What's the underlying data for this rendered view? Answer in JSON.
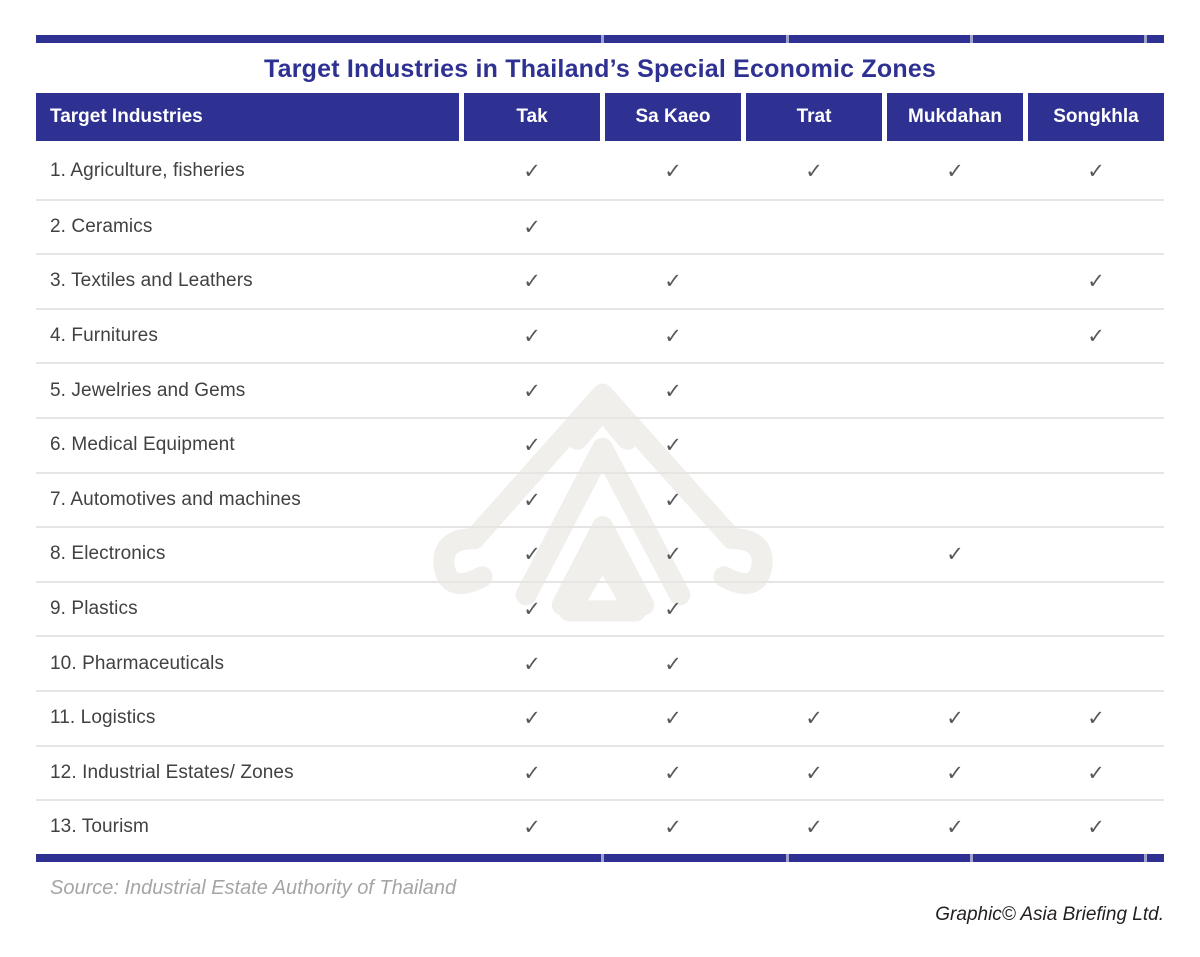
{
  "colors": {
    "accent_navy": "#2e3192",
    "header_text": "#ffffff",
    "row_text": "#414042",
    "check_color": "#58595b",
    "divider": "#e7e5e4",
    "source_text": "#a7a5a3",
    "credit_text": "#231f20",
    "watermark": "#f1efec"
  },
  "chart_data": {
    "type": "table",
    "title": "Target Industries in Thailand’s Special Economic Zones",
    "columns": [
      "Target Industries",
      "Tak",
      "Sa Kaeo",
      "Trat",
      "Mukdahan",
      "Songkhla"
    ],
    "check_glyph": "✓",
    "rows": [
      {
        "label": "1. Agriculture, fisheries",
        "checks": [
          true,
          true,
          true,
          true,
          true
        ]
      },
      {
        "label": "2. Ceramics",
        "checks": [
          true,
          false,
          false,
          false,
          false
        ]
      },
      {
        "label": "3. Textiles and Leathers",
        "checks": [
          true,
          true,
          false,
          false,
          true
        ]
      },
      {
        "label": "4. Furnitures",
        "checks": [
          true,
          true,
          false,
          false,
          true
        ]
      },
      {
        "label": "5. Jewelries and Gems",
        "checks": [
          true,
          true,
          false,
          false,
          false
        ]
      },
      {
        "label": "6. Medical Equipment",
        "checks": [
          true,
          true,
          false,
          false,
          false
        ]
      },
      {
        "label": "7. Automotives and machines",
        "checks": [
          true,
          true,
          false,
          false,
          false
        ]
      },
      {
        "label": "8. Electronics",
        "checks": [
          true,
          true,
          false,
          true,
          false
        ]
      },
      {
        "label": "9. Plastics",
        "checks": [
          true,
          true,
          false,
          false,
          false
        ]
      },
      {
        "label": "10. Pharmaceuticals",
        "checks": [
          true,
          true,
          false,
          false,
          false
        ]
      },
      {
        "label": "11. Logistics",
        "checks": [
          true,
          true,
          true,
          true,
          true
        ]
      },
      {
        "label": "12. Industrial Estates/ Zones",
        "checks": [
          true,
          true,
          true,
          true,
          true
        ]
      },
      {
        "label": "13. Tourism",
        "checks": [
          true,
          true,
          true,
          true,
          true
        ]
      }
    ],
    "source": "Source: Industrial Estate Authority of Thailand",
    "credit": "Graphic© Asia Briefing Ltd."
  }
}
